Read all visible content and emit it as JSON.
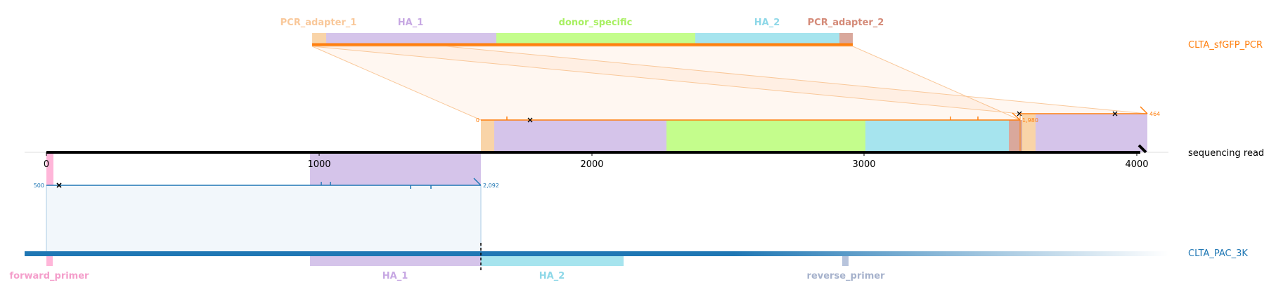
{
  "colors": {
    "pcr_adapter_1": "#f9d4a8",
    "ha_1": "#d5c4ea",
    "donor_specific": "#c4fd8c",
    "ha_2": "#a6e4ee",
    "pcr_adapter_2": "#d9a89c",
    "forward_primer": "#ffb6d9",
    "reverse_primer": "#b8c4dc",
    "orange": "#ff7f0e",
    "blue": "#1f77b4"
  },
  "reference_top": {
    "name": "CLTA_sfGFP_PCR",
    "features": [
      {
        "key": "pcr_adapter_1",
        "label": "PCR_adapter_1",
        "label_color": "#f9c89a"
      },
      {
        "key": "ha_1",
        "label": "HA_1",
        "label_color": "#c7a8e3"
      },
      {
        "key": "donor_specific",
        "label": "donor_specific",
        "label_color": "#a8f062"
      },
      {
        "key": "ha_2",
        "label": "HA_2",
        "label_color": "#8ed8e8"
      },
      {
        "key": "pcr_adapter_2",
        "label": "PCR_adapter_2",
        "label_color": "#d48a78"
      }
    ]
  },
  "read": {
    "name": "sequencing read",
    "axis_ticks": [
      "0",
      "1000",
      "2000",
      "3000",
      "4000"
    ],
    "orange_alignment_1": {
      "start": "0",
      "end": "1,980"
    },
    "orange_alignment_2": {
      "end": "464"
    },
    "blue_alignment": {
      "start": "500",
      "end": "2,092"
    }
  },
  "reference_bottom": {
    "name": "CLTA_PAC_3K",
    "features": [
      {
        "key": "forward_primer",
        "label": "forward_primer",
        "label_color": "#f49ecb"
      },
      {
        "key": "ha_1",
        "label": "HA_1",
        "label_color": "#c7a8e3"
      },
      {
        "key": "ha_2",
        "label": "HA_2",
        "label_color": "#8ed8e8"
      },
      {
        "key": "reverse_primer",
        "label": "reverse_primer",
        "label_color": "#a6b2cc"
      }
    ]
  }
}
